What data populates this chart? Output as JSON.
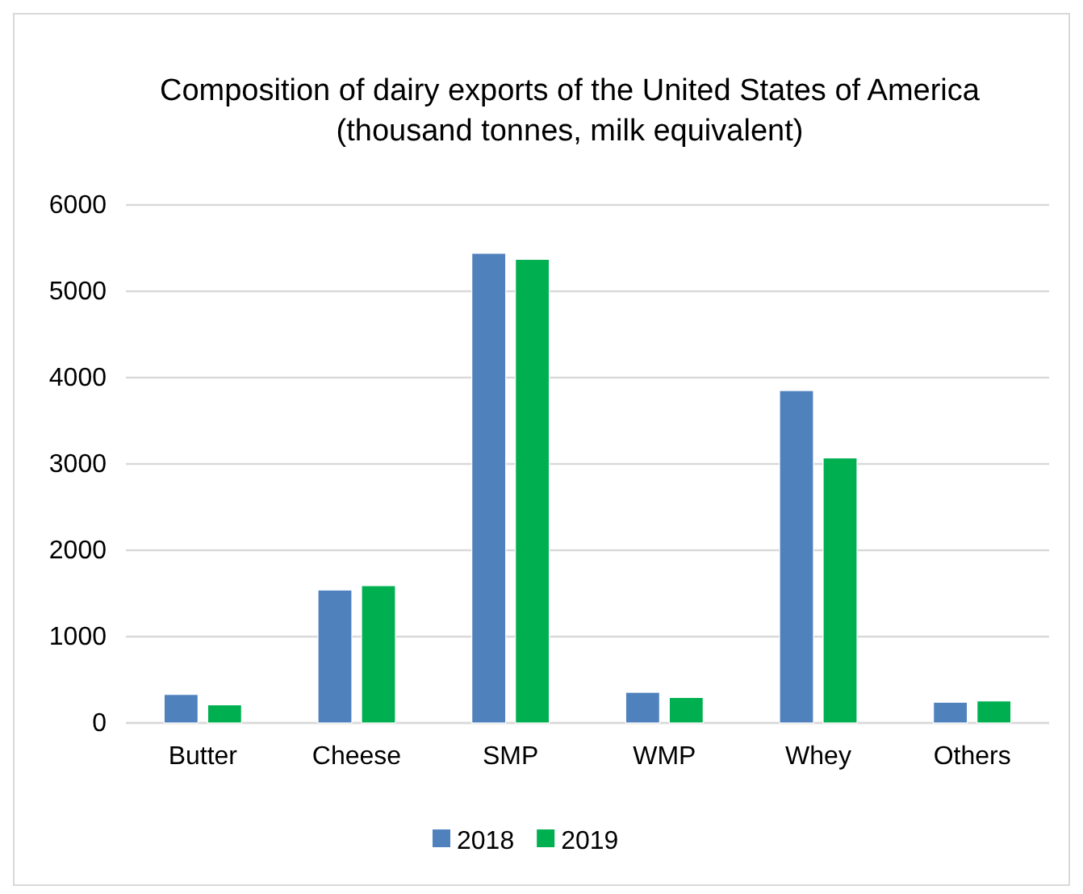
{
  "chart_data": {
    "type": "bar",
    "title": "Composition of dairy exports of the United States of America\n(thousand tonnes, milk equivalent)",
    "categories": [
      "Butter",
      "Cheese",
      "SMP",
      "WMP",
      "Whey",
      "Others"
    ],
    "series": [
      {
        "name": "2018",
        "color": "#4f81bd",
        "values": [
          330,
          1540,
          5440,
          355,
          3850,
          240
        ]
      },
      {
        "name": "2019",
        "color": "#00b050",
        "values": [
          210,
          1590,
          5370,
          295,
          3070,
          255
        ]
      }
    ],
    "ylim": [
      0,
      6000
    ],
    "yticks": [
      0,
      1000,
      2000,
      3000,
      4000,
      5000,
      6000
    ],
    "grid": "y",
    "legend": "bottom"
  }
}
